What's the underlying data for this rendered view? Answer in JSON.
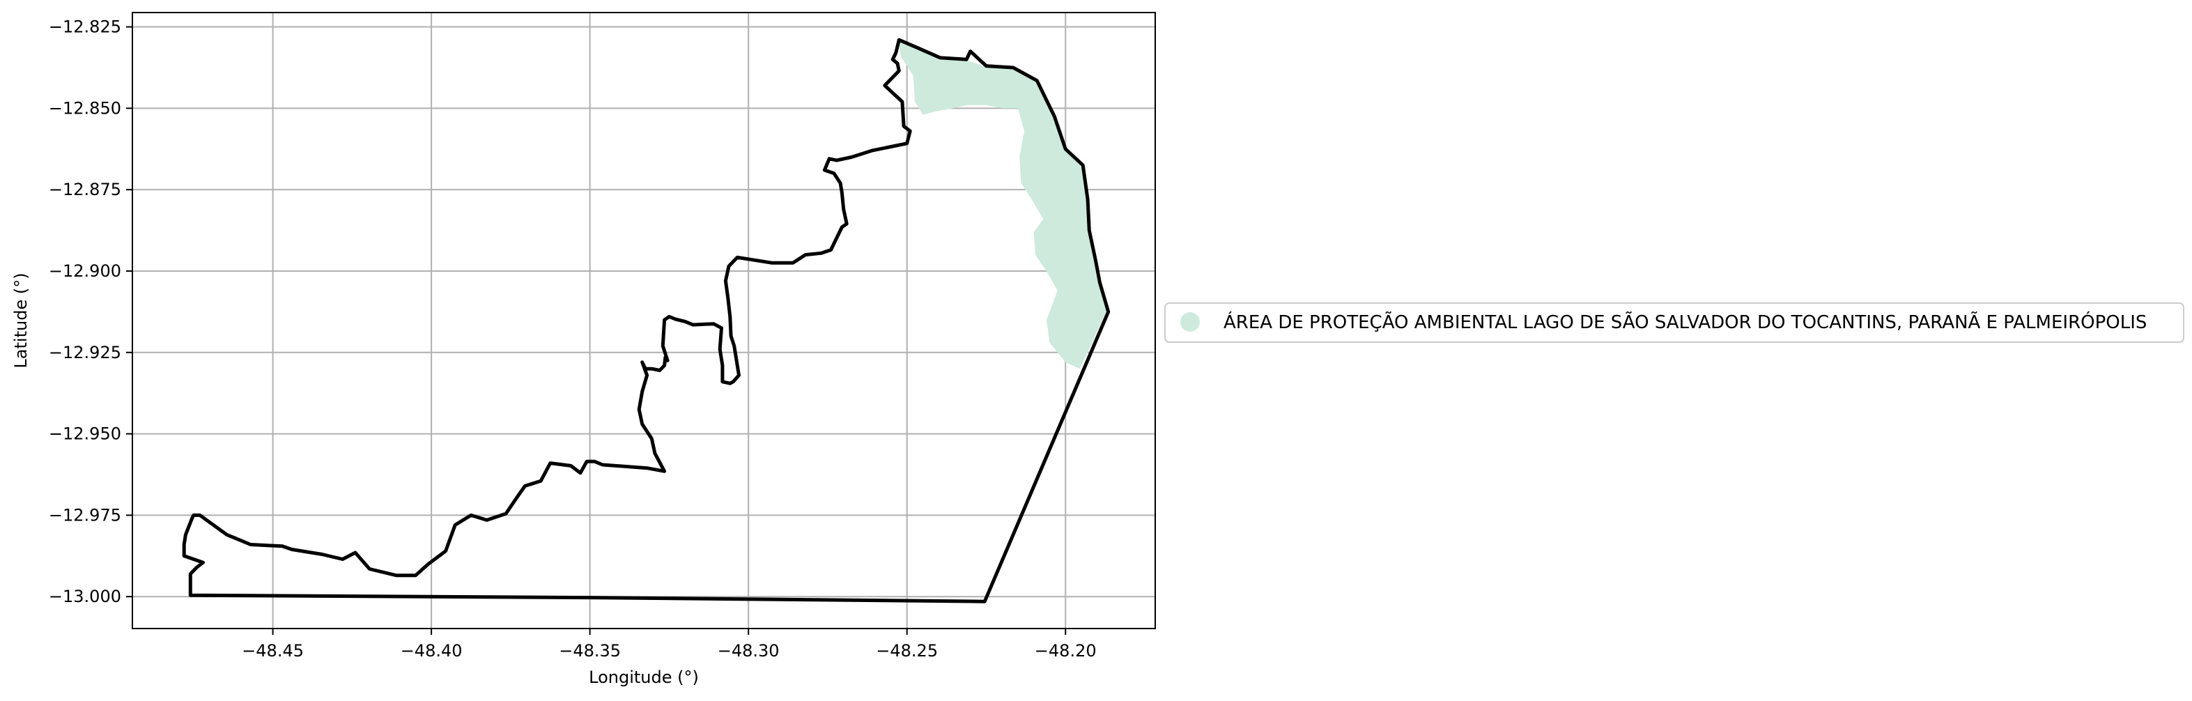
{
  "chart_data": {
    "type": "map",
    "xlabel": "Longitude (°)",
    "ylabel": "Latitude (°)",
    "xlim": [
      -48.4943,
      -48.1717
    ],
    "ylim": [
      -13.0098,
      -12.8206
    ],
    "xticks": [
      -48.45,
      -48.4,
      -48.35,
      -48.3,
      -48.25,
      -48.2
    ],
    "xtick_labels": [
      "−48.45",
      "−48.40",
      "−48.35",
      "−48.30",
      "−48.25",
      "−48.20"
    ],
    "yticks": [
      -12.825,
      -12.85,
      -12.875,
      -12.9,
      -12.925,
      -12.95,
      -12.975,
      -13.0
    ],
    "ytick_labels": [
      "−12.825",
      "−12.850",
      "−12.875",
      "−12.900",
      "−12.925",
      "−12.950",
      "−12.975",
      "−13.000"
    ],
    "grid": true,
    "legend_position": "center-right-outside",
    "legend": [
      {
        "label": "ÁREA DE PROTEÇÃO AMBIENTAL LAGO DE SÃO SALVADOR DO TOCANTINS, PARANÃ E PALMEIRÓPOLIS",
        "color": "#cdeadd"
      }
    ],
    "colors": {
      "boundary": "#000000",
      "protected_area": "#cdeadd",
      "grid": "#b0b0b0"
    },
    "boundary": [
      [
        -48.476,
        -12.993
      ],
      [
        -48.476,
        -12.9996
      ],
      [
        -48.35,
        -13.0003
      ],
      [
        -48.2255,
        -13.0015
      ],
      [
        -48.1865,
        -12.9125
      ],
      [
        -48.1892,
        -12.9035
      ],
      [
        -48.1905,
        -12.8968
      ],
      [
        -48.1925,
        -12.8875
      ],
      [
        -48.193,
        -12.878
      ],
      [
        -48.1945,
        -12.8675
      ],
      [
        -48.2,
        -12.8625
      ],
      [
        -48.2035,
        -12.8525
      ],
      [
        -48.209,
        -12.8415
      ],
      [
        -48.2165,
        -12.8375
      ],
      [
        -48.225,
        -12.837
      ],
      [
        -48.23,
        -12.8325
      ],
      [
        -48.2312,
        -12.835
      ],
      [
        -48.2395,
        -12.8345
      ],
      [
        -48.2465,
        -12.8315
      ],
      [
        -48.2525,
        -12.829
      ],
      [
        -48.2535,
        -12.833
      ],
      [
        -48.2545,
        -12.835
      ],
      [
        -48.253,
        -12.8362
      ],
      [
        -48.2525,
        -12.8385
      ],
      [
        -48.257,
        -12.843
      ],
      [
        -48.2515,
        -12.848
      ],
      [
        -48.251,
        -12.8555
      ],
      [
        -48.249,
        -12.857
      ],
      [
        -48.25,
        -12.8608
      ],
      [
        -48.255,
        -12.8618
      ],
      [
        -48.261,
        -12.863
      ],
      [
        -48.2675,
        -12.865
      ],
      [
        -48.2722,
        -12.866
      ],
      [
        -48.2745,
        -12.8655
      ],
      [
        -48.276,
        -12.869
      ],
      [
        -48.273,
        -12.87
      ],
      [
        -48.271,
        -12.873
      ],
      [
        -48.2705,
        -12.876
      ],
      [
        -48.27,
        -12.881
      ],
      [
        -48.269,
        -12.8855
      ],
      [
        -48.2705,
        -12.8865
      ],
      [
        -48.274,
        -12.8935
      ],
      [
        -48.277,
        -12.8945
      ],
      [
        -48.282,
        -12.895
      ],
      [
        -48.286,
        -12.8975
      ],
      [
        -48.2925,
        -12.8975
      ],
      [
        -48.3035,
        -12.8958
      ],
      [
        -48.3062,
        -12.8985
      ],
      [
        -48.3072,
        -12.903
      ],
      [
        -48.3065,
        -12.908
      ],
      [
        -48.3058,
        -12.914
      ],
      [
        -48.3055,
        -12.92
      ],
      [
        -48.3045,
        -12.923
      ],
      [
        -48.303,
        -12.932
      ],
      [
        -48.3048,
        -12.934
      ],
      [
        -48.3058,
        -12.9345
      ],
      [
        -48.3082,
        -12.934
      ],
      [
        -48.3082,
        -12.929
      ],
      [
        -48.309,
        -12.924
      ],
      [
        -48.3085,
        -12.9175
      ],
      [
        -48.311,
        -12.9162
      ],
      [
        -48.3175,
        -12.9165
      ],
      [
        -48.32,
        -12.9155
      ],
      [
        -48.323,
        -12.9148
      ],
      [
        -48.325,
        -12.914
      ],
      [
        -48.3265,
        -12.915
      ],
      [
        -48.327,
        -12.923
      ],
      [
        -48.3255,
        -12.9275
      ],
      [
        -48.3262,
        -12.9265
      ],
      [
        -48.3265,
        -12.929
      ],
      [
        -48.328,
        -12.9305
      ],
      [
        -48.3305,
        -12.93
      ],
      [
        -48.3325,
        -12.93
      ],
      [
        -48.3335,
        -12.928
      ],
      [
        -48.332,
        -12.932
      ],
      [
        -48.3335,
        -12.937
      ],
      [
        -48.3345,
        -12.9425
      ],
      [
        -48.3335,
        -12.947
      ],
      [
        -48.3305,
        -12.9515
      ],
      [
        -48.3295,
        -12.956
      ],
      [
        -48.3265,
        -12.9615
      ],
      [
        -48.332,
        -12.9605
      ],
      [
        -48.346,
        -12.9595
      ],
      [
        -48.3485,
        -12.9585
      ],
      [
        -48.351,
        -12.9585
      ],
      [
        -48.353,
        -12.962
      ],
      [
        -48.356,
        -12.9598
      ],
      [
        -48.3625,
        -12.959
      ],
      [
        -48.3655,
        -12.9645
      ],
      [
        -48.3705,
        -12.966
      ],
      [
        -48.373,
        -12.9695
      ],
      [
        -48.3765,
        -12.9745
      ],
      [
        -48.3825,
        -12.9765
      ],
      [
        -48.3875,
        -12.975
      ],
      [
        -48.3925,
        -12.978
      ],
      [
        -48.3955,
        -12.986
      ],
      [
        -48.401,
        -12.99
      ],
      [
        -48.405,
        -12.9935
      ],
      [
        -48.411,
        -12.9935
      ],
      [
        -48.4195,
        -12.9915
      ],
      [
        -48.424,
        -12.9865
      ],
      [
        -48.428,
        -12.9885
      ],
      [
        -48.4345,
        -12.987
      ],
      [
        -48.444,
        -12.9855
      ],
      [
        -48.447,
        -12.9845
      ],
      [
        -48.457,
        -12.984
      ],
      [
        -48.462,
        -12.982
      ],
      [
        -48.4645,
        -12.981
      ],
      [
        -48.473,
        -12.975
      ],
      [
        -48.475,
        -12.975
      ],
      [
        -48.4755,
        -12.976
      ],
      [
        -48.4775,
        -12.981
      ],
      [
        -48.478,
        -12.984
      ],
      [
        -48.478,
        -12.9875
      ],
      [
        -48.472,
        -12.9895
      ],
      [
        -48.474,
        -12.991
      ],
      [
        -48.476,
        -12.993
      ]
    ],
    "protected_area": [
      [
        -48.252,
        -12.829
      ],
      [
        -48.246,
        -12.831
      ],
      [
        -48.24,
        -12.8345
      ],
      [
        -48.232,
        -12.835
      ],
      [
        -48.226,
        -12.837
      ],
      [
        -48.218,
        -12.8375
      ],
      [
        -48.21,
        -12.841
      ],
      [
        -48.204,
        -12.852
      ],
      [
        -48.2,
        -12.8625
      ],
      [
        -48.195,
        -12.867
      ],
      [
        -48.1935,
        -12.878
      ],
      [
        -48.1925,
        -12.888
      ],
      [
        -48.1905,
        -12.897
      ],
      [
        -48.189,
        -12.904
      ],
      [
        -48.187,
        -12.912
      ],
      [
        -48.192,
        -12.923
      ],
      [
        -48.1955,
        -12.93
      ],
      [
        -48.2,
        -12.928
      ],
      [
        -48.205,
        -12.922
      ],
      [
        -48.206,
        -12.915
      ],
      [
        -48.2025,
        -12.906
      ],
      [
        -48.206,
        -12.9
      ],
      [
        -48.2095,
        -12.895
      ],
      [
        -48.21,
        -12.888
      ],
      [
        -48.207,
        -12.884
      ],
      [
        -48.21,
        -12.879
      ],
      [
        -48.214,
        -12.873
      ],
      [
        -48.2145,
        -12.865
      ],
      [
        -48.213,
        -12.857
      ],
      [
        -48.215,
        -12.85
      ],
      [
        -48.22,
        -12.85
      ],
      [
        -48.225,
        -12.849
      ],
      [
        -48.231,
        -12.849
      ],
      [
        -48.2355,
        -12.85
      ],
      [
        -48.241,
        -12.851
      ],
      [
        -48.245,
        -12.852
      ],
      [
        -48.2475,
        -12.848
      ],
      [
        -48.248,
        -12.84
      ],
      [
        -48.252,
        -12.834
      ],
      [
        -48.2525,
        -12.83
      ]
    ]
  }
}
